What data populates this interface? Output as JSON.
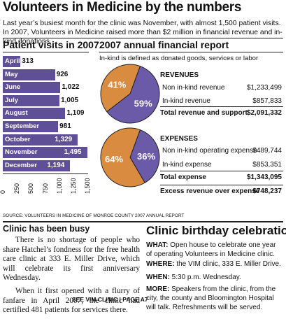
{
  "headline": "Volunteers in Medicine by the numbers",
  "deck": "Last year’s busiest month for the clinic was November, with almost 1,500 patient visits. In 2007, Volunteers in Medicine raised more than $2 million in financial revenue and in-kind donations.",
  "chart_data": [
    {
      "type": "bar",
      "title": "Patient visits in 2007",
      "categories": [
        "April",
        "May",
        "June",
        "July",
        "August",
        "September",
        "October",
        "November",
        "December"
      ],
      "values": [
        313,
        926,
        1022,
        1005,
        1109,
        981,
        1329,
        1495,
        1194
      ],
      "value_labels": [
        "313",
        "926",
        "1,022",
        "1,005",
        "1,109",
        "981",
        "1,329",
        "1,495",
        "1,194"
      ],
      "xlim": [
        0,
        1500
      ],
      "ticks": [
        "0",
        "250",
        "500",
        "750",
        "1,000",
        "1,250",
        "1,500"
      ],
      "color": "#5e4f96"
    },
    {
      "type": "pie",
      "title": "REVENUES",
      "slices": [
        {
          "label": "Non in-kind revenue",
          "value": 59,
          "pct_label": "59%",
          "amount": "$1,233,499",
          "color": "#6a5aa8"
        },
        {
          "label": "In-kind revenue",
          "value": 41,
          "pct_label": "41%",
          "amount": "$857,833",
          "color": "#d98b3f"
        }
      ],
      "total_label": "Total revenue and support",
      "total_amount": "$2,091,332"
    },
    {
      "type": "pie",
      "title": "EXPENSES",
      "slices": [
        {
          "label": "Non in-kind operating expense",
          "value": 36,
          "pct_label": "36%",
          "amount": "$489,744",
          "color": "#6a5aa8"
        },
        {
          "label": "In-kind expense",
          "value": 64,
          "pct_label": "64%",
          "amount": "$853,351",
          "color": "#d98b3f"
        }
      ],
      "total_label": "Total expense",
      "total_amount": "$1,343,095"
    }
  ],
  "source": "SOURCE: VOLUNTEERS IN MEDICINE OF MONROE COUNTY 2007 ANNUAL REPORT",
  "financial": {
    "title": "2007 annual financial report",
    "note": "In-kind is defined as donated goods, services or labor",
    "excess_label": "Excess revenue over expense",
    "excess_amount": "$748,237"
  },
  "article": {
    "title": "Clinic has been busy",
    "p1": "There is no shortage of people who share Hatchel’s fondness for the free health care clinic at 333 E. Miller Drive, which will celebrate its first anniversary Wednesday.",
    "p2": "When it first opened with a flurry of fanfare in April 2007, the clinic had certified 481 patients for services there.",
    "jump": "SEE VIM CLINIC | PAGE A7"
  },
  "birthday": {
    "title": "Clinic birthday celebration",
    "what_label": "WHAT:",
    "what": "Open house to celebrate one year of operating Volunteers in Medicine clinic.",
    "where_label": "WHERE:",
    "where": "the VIM clinic, 333 E. Miller Drive.",
    "when_label": "WHEN:",
    "when": "5:30 p.m. Wednesday.",
    "more_label": "MORE:",
    "more": "Speakers from the clinic, from the city, the county and Bloomington Hospital will talk. Refreshments will be served."
  }
}
